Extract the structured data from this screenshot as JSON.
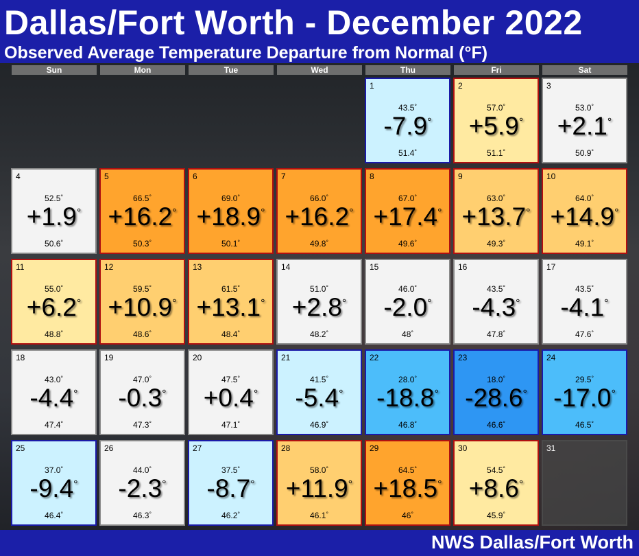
{
  "title": "Dallas/Fort Worth - December 2022",
  "subtitle": "Observed Average Temperature Departure from Normal (°F)",
  "footer": "NWS Dallas/Fort Worth",
  "colors": {
    "header_bg": "#1b1fa8",
    "near_normal": "#f3f3f3",
    "warm_light": "#ffeaa1",
    "warm_medium": "#ffcf70",
    "warm_strong": "#ffa42d",
    "cool_light": "#ccf2ff",
    "cool_medium": "#4cbdfa",
    "cool_strong": "#2e96f3"
  },
  "weekdays": [
    "Sun",
    "Mon",
    "Tue",
    "Wed",
    "Thu",
    "Fri",
    "Sat"
  ],
  "days": [
    {
      "day": "1",
      "obs": "43.5",
      "dep": "-7.9",
      "normal": "51.4",
      "cls": "cool1"
    },
    {
      "day": "2",
      "obs": "57.0",
      "dep": "+5.9",
      "normal": "51.1",
      "cls": "warm1"
    },
    {
      "day": "3",
      "obs": "53.0",
      "dep": "+2.1",
      "normal": "50.9",
      "cls": "normal"
    },
    {
      "day": "4",
      "obs": "52.5",
      "dep": "+1.9",
      "normal": "50.6",
      "cls": "normal"
    },
    {
      "day": "5",
      "obs": "66.5",
      "dep": "+16.2",
      "normal": "50.3",
      "cls": "warm3"
    },
    {
      "day": "6",
      "obs": "69.0",
      "dep": "+18.9",
      "normal": "50.1",
      "cls": "warm3"
    },
    {
      "day": "7",
      "obs": "66.0",
      "dep": "+16.2",
      "normal": "49.8",
      "cls": "warm3"
    },
    {
      "day": "8",
      "obs": "67.0",
      "dep": "+17.4",
      "normal": "49.6",
      "cls": "warm3"
    },
    {
      "day": "9",
      "obs": "63.0",
      "dep": "+13.7",
      "normal": "49.3",
      "cls": "warm2"
    },
    {
      "day": "10",
      "obs": "64.0",
      "dep": "+14.9",
      "normal": "49.1",
      "cls": "warm2"
    },
    {
      "day": "11",
      "obs": "55.0",
      "dep": "+6.2",
      "normal": "48.8",
      "cls": "warm1"
    },
    {
      "day": "12",
      "obs": "59.5",
      "dep": "+10.9",
      "normal": "48.6",
      "cls": "warm2"
    },
    {
      "day": "13",
      "obs": "61.5",
      "dep": "+13.1",
      "normal": "48.4",
      "cls": "warm2"
    },
    {
      "day": "14",
      "obs": "51.0",
      "dep": "+2.8",
      "normal": "48.2",
      "cls": "normal"
    },
    {
      "day": "15",
      "obs": "46.0",
      "dep": "-2.0",
      "normal": "48",
      "cls": "normal"
    },
    {
      "day": "16",
      "obs": "43.5",
      "dep": "-4.3",
      "normal": "47.8",
      "cls": "normal"
    },
    {
      "day": "17",
      "obs": "43.5",
      "dep": "-4.1",
      "normal": "47.6",
      "cls": "normal"
    },
    {
      "day": "18",
      "obs": "43.0",
      "dep": "-4.4",
      "normal": "47.4",
      "cls": "normal"
    },
    {
      "day": "19",
      "obs": "47.0",
      "dep": "-0.3",
      "normal": "47.3",
      "cls": "normal"
    },
    {
      "day": "20",
      "obs": "47.5",
      "dep": "+0.4",
      "normal": "47.1",
      "cls": "normal"
    },
    {
      "day": "21",
      "obs": "41.5",
      "dep": "-5.4",
      "normal": "46.9",
      "cls": "cool1"
    },
    {
      "day": "22",
      "obs": "28.0",
      "dep": "-18.8",
      "normal": "46.8",
      "cls": "cool2"
    },
    {
      "day": "23",
      "obs": "18.0",
      "dep": "-28.6",
      "normal": "46.6",
      "cls": "cool3"
    },
    {
      "day": "24",
      "obs": "29.5",
      "dep": "-17.0",
      "normal": "46.5",
      "cls": "cool2"
    },
    {
      "day": "25",
      "obs": "37.0",
      "dep": "-9.4",
      "normal": "46.4",
      "cls": "cool1"
    },
    {
      "day": "26",
      "obs": "44.0",
      "dep": "-2.3",
      "normal": "46.3",
      "cls": "normal"
    },
    {
      "day": "27",
      "obs": "37.5",
      "dep": "-8.7",
      "normal": "46.2",
      "cls": "cool1"
    },
    {
      "day": "28",
      "obs": "58.0",
      "dep": "+11.9",
      "normal": "46.1",
      "cls": "warm2"
    },
    {
      "day": "29",
      "obs": "64.5",
      "dep": "+18.5",
      "normal": "46",
      "cls": "warm3"
    },
    {
      "day": "30",
      "obs": "54.5",
      "dep": "+8.6",
      "normal": "45.9",
      "cls": "warm1"
    },
    {
      "day": "31",
      "obs": "",
      "dep": "",
      "normal": "",
      "cls": "empty"
    }
  ]
}
